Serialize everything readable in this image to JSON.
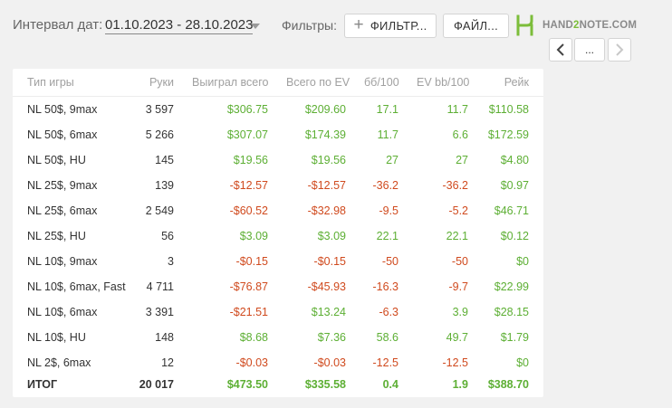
{
  "toolbar": {
    "date_label": "Интервал дат:",
    "date_range": "01.10.2023 - 28.10.2023",
    "filters_label": "Фильтры:",
    "filter_button": "ФИЛЬТР...",
    "file_button": "ФАЙЛ...",
    "logo_text_a": "HAND",
    "logo_text_b": "2",
    "logo_text_c": "NOTE.COM",
    "more_button": "...",
    "icons": {
      "plus": "plus-icon",
      "caret": "chevron-down-icon",
      "logo": "hand2note-logo",
      "prev": "chevron-left-icon",
      "next": "chevron-right-icon"
    }
  },
  "colors": {
    "positive": "#5daf34",
    "negative": "#d04a1e",
    "header": "#a0a0a0",
    "brand_green": "#7cbd3a"
  },
  "table": {
    "columns": [
      "Тип игры",
      "Руки",
      "Выиграл всего",
      "Всего по EV",
      "бб/100",
      "EV bb/100",
      "Рейк"
    ],
    "rows": [
      {
        "type": "NL 50$, 9max",
        "hands": "3 597",
        "won": "$306.75",
        "ev": "$209.60",
        "bb100": "17.1",
        "evbb100": "11.7",
        "rake": "$110.58"
      },
      {
        "type": "NL 50$, 6max",
        "hands": "5 266",
        "won": "$307.07",
        "ev": "$174.39",
        "bb100": "11.7",
        "evbb100": "6.6",
        "rake": "$172.59"
      },
      {
        "type": "NL 50$, HU",
        "hands": "145",
        "won": "$19.56",
        "ev": "$19.56",
        "bb100": "27",
        "evbb100": "27",
        "rake": "$4.80"
      },
      {
        "type": "NL 25$, 9max",
        "hands": "139",
        "won": "-$12.57",
        "ev": "-$12.57",
        "bb100": "-36.2",
        "evbb100": "-36.2",
        "rake": "$0.97"
      },
      {
        "type": "NL 25$, 6max",
        "hands": "2 549",
        "won": "-$60.52",
        "ev": "-$32.98",
        "bb100": "-9.5",
        "evbb100": "-5.2",
        "rake": "$46.71"
      },
      {
        "type": "NL 25$, HU",
        "hands": "56",
        "won": "$3.09",
        "ev": "$3.09",
        "bb100": "22.1",
        "evbb100": "22.1",
        "rake": "$0.12"
      },
      {
        "type": "NL 10$, 9max",
        "hands": "3",
        "won": "-$0.15",
        "ev": "-$0.15",
        "bb100": "-50",
        "evbb100": "-50",
        "rake": "$0"
      },
      {
        "type": "NL 10$, 6max, Fast",
        "hands": "4 711",
        "won": "-$76.87",
        "ev": "-$45.93",
        "bb100": "-16.3",
        "evbb100": "-9.7",
        "rake": "$22.99"
      },
      {
        "type": "NL 10$, 6max",
        "hands": "3 391",
        "won": "-$21.51",
        "ev": "$13.24",
        "bb100": "-6.3",
        "evbb100": "3.9",
        "rake": "$28.15"
      },
      {
        "type": "NL 10$, HU",
        "hands": "148",
        "won": "$8.68",
        "ev": "$7.36",
        "bb100": "58.6",
        "evbb100": "49.7",
        "rake": "$1.79"
      },
      {
        "type": "NL 2$, 6max",
        "hands": "12",
        "won": "-$0.03",
        "ev": "-$0.03",
        "bb100": "-12.5",
        "evbb100": "-12.5",
        "rake": "$0"
      }
    ],
    "total": {
      "type": "ИТОГ",
      "hands": "20 017",
      "won": "$473.50",
      "ev": "$335.58",
      "bb100": "0.4",
      "evbb100": "1.9",
      "rake": "$388.70"
    }
  }
}
